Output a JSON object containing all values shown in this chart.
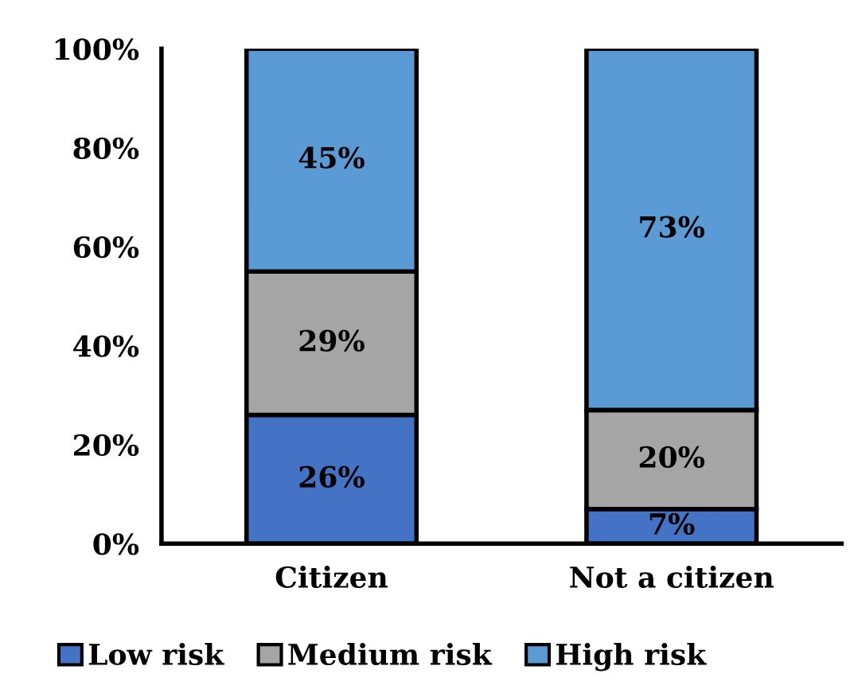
{
  "chart_data": {
    "type": "bar",
    "stacked": true,
    "categories": [
      "Citizen",
      "Not a citizen"
    ],
    "series": [
      {
        "name": "Low risk",
        "color": "#4472c4",
        "values": [
          26,
          7
        ],
        "value_labels": [
          "26%",
          "7%"
        ]
      },
      {
        "name": "Medium risk",
        "color": "#a5a5a5",
        "values": [
          29,
          20
        ],
        "value_labels": [
          "29%",
          "20%"
        ]
      },
      {
        "name": "High risk",
        "color": "#5b9bd5",
        "values": [
          45,
          73
        ],
        "value_labels": [
          "45%",
          "73%"
        ]
      }
    ],
    "ylim": [
      0,
      100
    ],
    "yticks": [
      {
        "value": 0,
        "label": "0%"
      },
      {
        "value": 20,
        "label": "20%"
      },
      {
        "value": 40,
        "label": "40%"
      },
      {
        "value": 60,
        "label": "60%"
      },
      {
        "value": 80,
        "label": "80%"
      },
      {
        "value": 100,
        "label": "100%"
      }
    ],
    "grid": false,
    "legend": "bottom"
  }
}
